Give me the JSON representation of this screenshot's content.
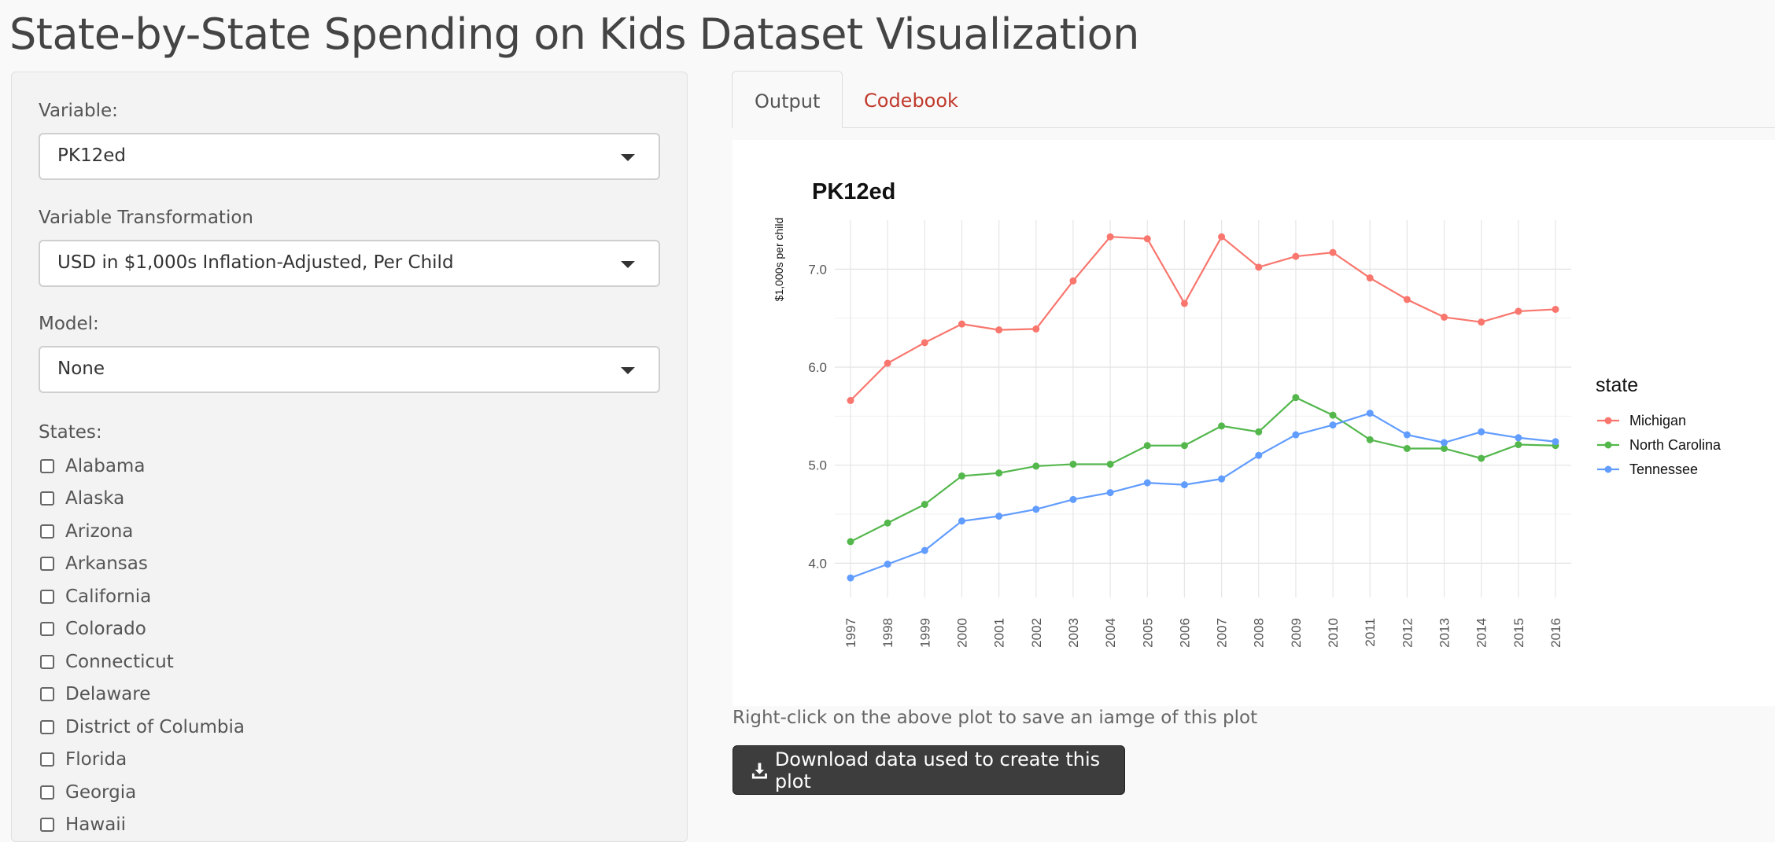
{
  "page": {
    "title": "State-by-State Spending on Kids Dataset Visualization"
  },
  "sidebar": {
    "variable": {
      "label": "Variable:",
      "value": "PK12ed"
    },
    "transformation": {
      "label": "Variable Transformation",
      "value": "USD in $1,000s Inflation-Adjusted, Per Child"
    },
    "model": {
      "label": "Model:",
      "value": "None"
    },
    "states": {
      "label": "States:",
      "items": [
        "Alabama",
        "Alaska",
        "Arizona",
        "Arkansas",
        "California",
        "Colorado",
        "Connecticut",
        "Delaware",
        "District of Columbia",
        "Florida",
        "Georgia",
        "Hawaii"
      ]
    }
  },
  "tabs": [
    {
      "label": "Output",
      "active": true
    },
    {
      "label": "Codebook",
      "active": false
    }
  ],
  "note": "Right-click on the above plot to save an iamge of this plot",
  "download_button": {
    "label": "Download data used to create this plot",
    "icon": "download-icon"
  },
  "colors": {
    "michigan": "#F8766D",
    "north_carolina": "#53B74C",
    "tennessee": "#619CFF",
    "link": "#c0392b",
    "button": "#3d3d3d"
  },
  "chart_data": {
    "type": "line",
    "title": "PK12ed",
    "xlabel": "",
    "ylabel": "$1,000s per child",
    "x": [
      1997,
      1998,
      1999,
      2000,
      2001,
      2002,
      2003,
      2004,
      2005,
      2006,
      2007,
      2008,
      2009,
      2010,
      2011,
      2012,
      2013,
      2014,
      2015,
      2016
    ],
    "y_ticks": [
      "4.0",
      "5.0",
      "6.0",
      "7.0"
    ],
    "ylim": [
      3.65,
      7.5
    ],
    "grid": true,
    "legend": {
      "title": "state",
      "position": "right"
    },
    "series": [
      {
        "name": "Michigan",
        "color": "#F8766D",
        "values": [
          5.66,
          6.04,
          6.25,
          6.44,
          6.38,
          6.39,
          6.88,
          7.33,
          7.31,
          6.65,
          7.33,
          7.02,
          7.13,
          7.17,
          6.91,
          6.69,
          6.51,
          6.46,
          6.57,
          6.59
        ]
      },
      {
        "name": "North Carolina",
        "color": "#53B74C",
        "values": [
          4.22,
          4.41,
          4.6,
          4.89,
          4.92,
          4.99,
          5.01,
          5.01,
          5.2,
          5.2,
          5.4,
          5.34,
          5.69,
          5.51,
          5.26,
          5.17,
          5.17,
          5.07,
          5.21,
          5.2
        ]
      },
      {
        "name": "Tennessee",
        "color": "#619CFF",
        "values": [
          3.85,
          3.99,
          4.13,
          4.43,
          4.48,
          4.55,
          4.65,
          4.72,
          4.82,
          4.8,
          4.86,
          5.1,
          5.31,
          5.41,
          5.53,
          5.31,
          5.23,
          5.34,
          5.28,
          5.24
        ]
      }
    ]
  }
}
